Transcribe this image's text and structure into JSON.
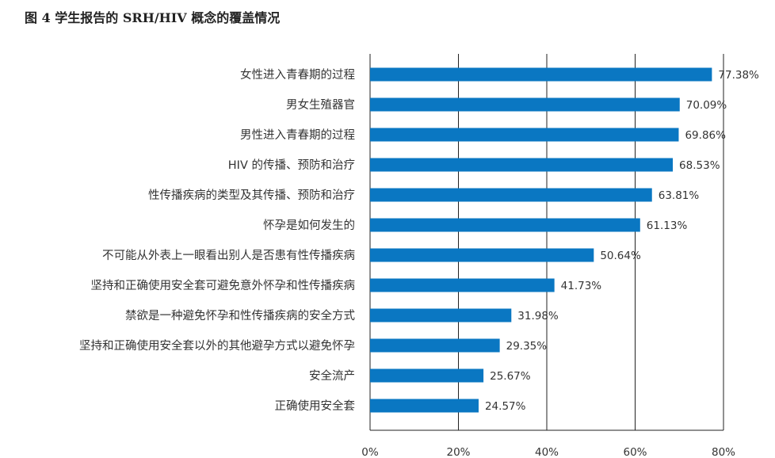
{
  "chart_data": {
    "type": "bar",
    "orientation": "horizontal",
    "title": "图 4 学生报告的 SRH/HIV 概念的覆盖情况",
    "categories": [
      "女性进入青春期的过程",
      "男女生殖器官",
      "男性进入青春期的过程",
      "HIV 的传播、预防和治疗",
      "性传播疾病的类型及其传播、预防和治疗",
      "怀孕是如何发生的",
      "不可能从外表上一眼看出别人是否患有性传播疾病",
      "坚持和正确使用安全套可避免意外怀孕和性传播疾病",
      "禁欲是一种避免怀孕和性传播疾病的安全方式",
      "坚持和正确使用安全套以外的其他避孕方式以避免怀孕",
      "安全流产",
      "正确使用安全套"
    ],
    "values": [
      77.38,
      70.09,
      69.86,
      68.53,
      63.81,
      61.13,
      50.64,
      41.73,
      31.98,
      29.35,
      25.67,
      24.57
    ],
    "value_labels": [
      "77.38%",
      "70.09%",
      "69.86%",
      "68.53%",
      "63.81%",
      "61.13%",
      "50.64%",
      "41.73%",
      "31.98%",
      "29.35%",
      "25.67%",
      "24.57%"
    ],
    "xlim": [
      0,
      80
    ],
    "xticks": [
      "0%",
      "20%",
      "40%",
      "60%",
      "80%"
    ],
    "grid": true,
    "bar_color": "#0a77c2",
    "xlabel": "",
    "ylabel": ""
  }
}
